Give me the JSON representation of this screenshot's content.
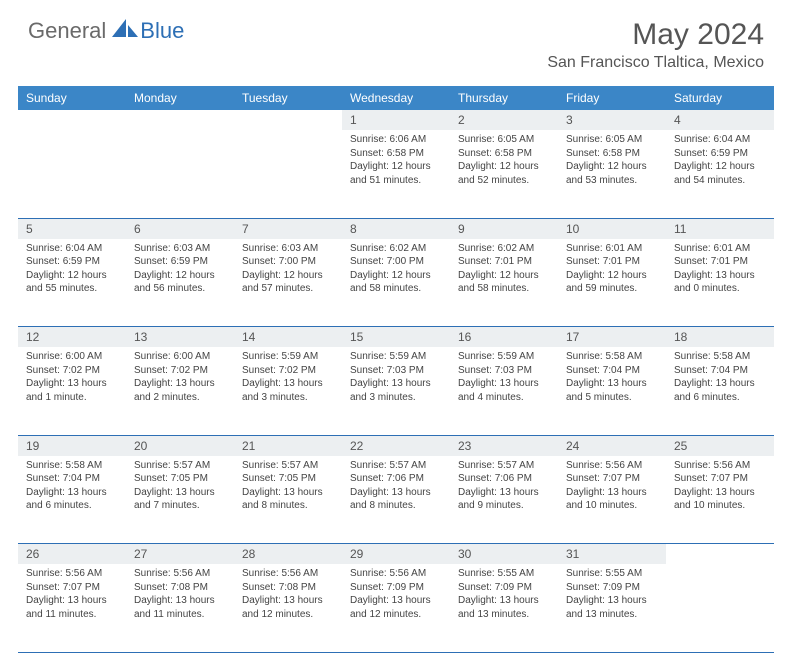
{
  "logo": {
    "general": "General",
    "blue": "Blue"
  },
  "title": "May 2024",
  "location": "San Francisco Tlaltica, Mexico",
  "colors": {
    "header_bg": "#3b86c7",
    "daynum_bg": "#eceff1",
    "rule": "#2d6fb5",
    "text": "#444444",
    "title_text": "#555555"
  },
  "weekdays": [
    "Sunday",
    "Monday",
    "Tuesday",
    "Wednesday",
    "Thursday",
    "Friday",
    "Saturday"
  ],
  "weeks": [
    [
      null,
      null,
      null,
      {
        "n": "1",
        "sr": "Sunrise: 6:06 AM",
        "ss": "Sunset: 6:58 PM",
        "dl": "Daylight: 12 hours and 51 minutes."
      },
      {
        "n": "2",
        "sr": "Sunrise: 6:05 AM",
        "ss": "Sunset: 6:58 PM",
        "dl": "Daylight: 12 hours and 52 minutes."
      },
      {
        "n": "3",
        "sr": "Sunrise: 6:05 AM",
        "ss": "Sunset: 6:58 PM",
        "dl": "Daylight: 12 hours and 53 minutes."
      },
      {
        "n": "4",
        "sr": "Sunrise: 6:04 AM",
        "ss": "Sunset: 6:59 PM",
        "dl": "Daylight: 12 hours and 54 minutes."
      }
    ],
    [
      {
        "n": "5",
        "sr": "Sunrise: 6:04 AM",
        "ss": "Sunset: 6:59 PM",
        "dl": "Daylight: 12 hours and 55 minutes."
      },
      {
        "n": "6",
        "sr": "Sunrise: 6:03 AM",
        "ss": "Sunset: 6:59 PM",
        "dl": "Daylight: 12 hours and 56 minutes."
      },
      {
        "n": "7",
        "sr": "Sunrise: 6:03 AM",
        "ss": "Sunset: 7:00 PM",
        "dl": "Daylight: 12 hours and 57 minutes."
      },
      {
        "n": "8",
        "sr": "Sunrise: 6:02 AM",
        "ss": "Sunset: 7:00 PM",
        "dl": "Daylight: 12 hours and 58 minutes."
      },
      {
        "n": "9",
        "sr": "Sunrise: 6:02 AM",
        "ss": "Sunset: 7:01 PM",
        "dl": "Daylight: 12 hours and 58 minutes."
      },
      {
        "n": "10",
        "sr": "Sunrise: 6:01 AM",
        "ss": "Sunset: 7:01 PM",
        "dl": "Daylight: 12 hours and 59 minutes."
      },
      {
        "n": "11",
        "sr": "Sunrise: 6:01 AM",
        "ss": "Sunset: 7:01 PM",
        "dl": "Daylight: 13 hours and 0 minutes."
      }
    ],
    [
      {
        "n": "12",
        "sr": "Sunrise: 6:00 AM",
        "ss": "Sunset: 7:02 PM",
        "dl": "Daylight: 13 hours and 1 minute."
      },
      {
        "n": "13",
        "sr": "Sunrise: 6:00 AM",
        "ss": "Sunset: 7:02 PM",
        "dl": "Daylight: 13 hours and 2 minutes."
      },
      {
        "n": "14",
        "sr": "Sunrise: 5:59 AM",
        "ss": "Sunset: 7:02 PM",
        "dl": "Daylight: 13 hours and 3 minutes."
      },
      {
        "n": "15",
        "sr": "Sunrise: 5:59 AM",
        "ss": "Sunset: 7:03 PM",
        "dl": "Daylight: 13 hours and 3 minutes."
      },
      {
        "n": "16",
        "sr": "Sunrise: 5:59 AM",
        "ss": "Sunset: 7:03 PM",
        "dl": "Daylight: 13 hours and 4 minutes."
      },
      {
        "n": "17",
        "sr": "Sunrise: 5:58 AM",
        "ss": "Sunset: 7:04 PM",
        "dl": "Daylight: 13 hours and 5 minutes."
      },
      {
        "n": "18",
        "sr": "Sunrise: 5:58 AM",
        "ss": "Sunset: 7:04 PM",
        "dl": "Daylight: 13 hours and 6 minutes."
      }
    ],
    [
      {
        "n": "19",
        "sr": "Sunrise: 5:58 AM",
        "ss": "Sunset: 7:04 PM",
        "dl": "Daylight: 13 hours and 6 minutes."
      },
      {
        "n": "20",
        "sr": "Sunrise: 5:57 AM",
        "ss": "Sunset: 7:05 PM",
        "dl": "Daylight: 13 hours and 7 minutes."
      },
      {
        "n": "21",
        "sr": "Sunrise: 5:57 AM",
        "ss": "Sunset: 7:05 PM",
        "dl": "Daylight: 13 hours and 8 minutes."
      },
      {
        "n": "22",
        "sr": "Sunrise: 5:57 AM",
        "ss": "Sunset: 7:06 PM",
        "dl": "Daylight: 13 hours and 8 minutes."
      },
      {
        "n": "23",
        "sr": "Sunrise: 5:57 AM",
        "ss": "Sunset: 7:06 PM",
        "dl": "Daylight: 13 hours and 9 minutes."
      },
      {
        "n": "24",
        "sr": "Sunrise: 5:56 AM",
        "ss": "Sunset: 7:07 PM",
        "dl": "Daylight: 13 hours and 10 minutes."
      },
      {
        "n": "25",
        "sr": "Sunrise: 5:56 AM",
        "ss": "Sunset: 7:07 PM",
        "dl": "Daylight: 13 hours and 10 minutes."
      }
    ],
    [
      {
        "n": "26",
        "sr": "Sunrise: 5:56 AM",
        "ss": "Sunset: 7:07 PM",
        "dl": "Daylight: 13 hours and 11 minutes."
      },
      {
        "n": "27",
        "sr": "Sunrise: 5:56 AM",
        "ss": "Sunset: 7:08 PM",
        "dl": "Daylight: 13 hours and 11 minutes."
      },
      {
        "n": "28",
        "sr": "Sunrise: 5:56 AM",
        "ss": "Sunset: 7:08 PM",
        "dl": "Daylight: 13 hours and 12 minutes."
      },
      {
        "n": "29",
        "sr": "Sunrise: 5:56 AM",
        "ss": "Sunset: 7:09 PM",
        "dl": "Daylight: 13 hours and 12 minutes."
      },
      {
        "n": "30",
        "sr": "Sunrise: 5:55 AM",
        "ss": "Sunset: 7:09 PM",
        "dl": "Daylight: 13 hours and 13 minutes."
      },
      {
        "n": "31",
        "sr": "Sunrise: 5:55 AM",
        "ss": "Sunset: 7:09 PM",
        "dl": "Daylight: 13 hours and 13 minutes."
      },
      null
    ]
  ]
}
